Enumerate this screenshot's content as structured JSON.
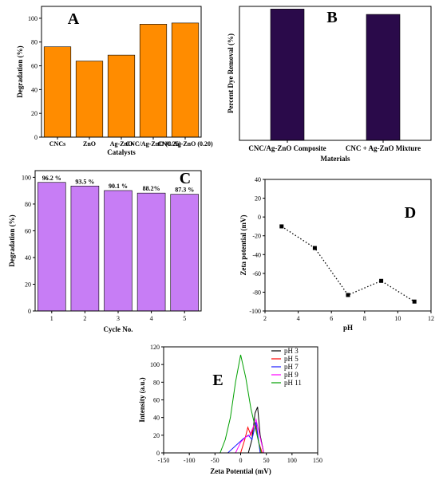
{
  "chart_data": [
    {
      "id": "A",
      "type": "bar",
      "panel_label": "A",
      "categories": [
        "CNCs",
        "ZnO",
        "Ag-ZnO",
        "CNC/Ag-ZnO (0.25)",
        "CNC/Ag-ZnO (0.20)"
      ],
      "values": [
        76,
        64,
        69,
        95,
        96
      ],
      "xlabel": "Catalysts",
      "ylabel": "Degradation (%)",
      "ylim": [
        0,
        110
      ],
      "yticks": [
        0,
        20,
        40,
        60,
        80,
        100
      ],
      "bar_color": "#ff8c00",
      "grid": false
    },
    {
      "id": "B",
      "type": "bar",
      "panel_label": "B",
      "categories": [
        "CNC/Ag-ZnO Composite",
        "CNC + Ag-ZnO Mixture"
      ],
      "values": [
        98,
        94
      ],
      "xlabel": "Materials",
      "ylabel": "Percent Dye Removal (%)",
      "ylim": [
        0,
        100
      ],
      "bar_color": "#2a0a4a",
      "grid": false
    },
    {
      "id": "C",
      "type": "bar",
      "panel_label": "C",
      "categories": [
        "1",
        "2",
        "3",
        "4",
        "5"
      ],
      "values": [
        96.2,
        93.5,
        90.1,
        88.2,
        87.3
      ],
      "data_labels": [
        "96.2 %",
        "93.5 %",
        "90.1 %",
        "88.2%",
        "87.3 %"
      ],
      "xlabel": "Cycle No.",
      "ylabel": "Degradation (%)",
      "ylim": [
        0,
        105
      ],
      "yticks": [
        0,
        20,
        40,
        60,
        80,
        100
      ],
      "bar_color": "#c77df5",
      "grid": false
    },
    {
      "id": "D",
      "type": "scatter",
      "panel_label": "D",
      "x": [
        3,
        5,
        7,
        9,
        11
      ],
      "y": [
        -10,
        -33,
        -83,
        -68,
        -90
      ],
      "xlabel": "pH",
      "ylabel": "Zeta potential (mV)",
      "xlim": [
        2,
        12
      ],
      "ylim": [
        -100,
        40
      ],
      "xticks": [
        2,
        4,
        6,
        8,
        10,
        12
      ],
      "yticks": [
        40,
        20,
        0,
        -20,
        -40,
        -60,
        -80,
        -100
      ],
      "line_style": "dotted",
      "grid": false
    },
    {
      "id": "E",
      "type": "line",
      "panel_label": "E",
      "xlabel": "Zeta Potential (mV)",
      "ylabel": "Intensity (a.u.)",
      "xlim": [
        -150,
        150
      ],
      "ylim": [
        0,
        120
      ],
      "xticks": [
        -150,
        -100,
        -50,
        0,
        50,
        100,
        150
      ],
      "yticks": [
        0,
        20,
        40,
        60,
        80,
        100,
        120
      ],
      "legend": "top-right",
      "series": [
        {
          "name": "pH 3",
          "color": "#000000",
          "x": [
            -150,
            15,
            22,
            28,
            33,
            38,
            45,
            150
          ],
          "y": [
            0,
            0,
            15,
            45,
            52,
            20,
            0,
            0
          ]
        },
        {
          "name": "pH 5",
          "color": "#ff0000",
          "x": [
            -150,
            0,
            8,
            14,
            20,
            28,
            35,
            42,
            150
          ],
          "y": [
            0,
            0,
            15,
            29,
            20,
            35,
            12,
            0,
            0
          ]
        },
        {
          "name": "pH 7",
          "color": "#1a1aff",
          "x": [
            -150,
            -25,
            -10,
            5,
            15,
            22,
            30,
            38,
            150
          ],
          "y": [
            0,
            0,
            8,
            16,
            20,
            15,
            35,
            0,
            0
          ]
        },
        {
          "name": "pH 9",
          "color": "#ff00ff",
          "x": [
            -150,
            -10,
            0,
            10,
            18,
            25,
            30,
            35,
            45,
            150
          ],
          "y": [
            0,
            0,
            12,
            18,
            20,
            30,
            38,
            25,
            0,
            0
          ]
        },
        {
          "name": "pH 11",
          "color": "#00a000",
          "x": [
            -150,
            -40,
            -30,
            -20,
            -10,
            0,
            10,
            20,
            30,
            40,
            150
          ],
          "y": [
            0,
            0,
            15,
            40,
            80,
            111,
            85,
            50,
            25,
            0,
            0
          ]
        }
      ]
    }
  ]
}
